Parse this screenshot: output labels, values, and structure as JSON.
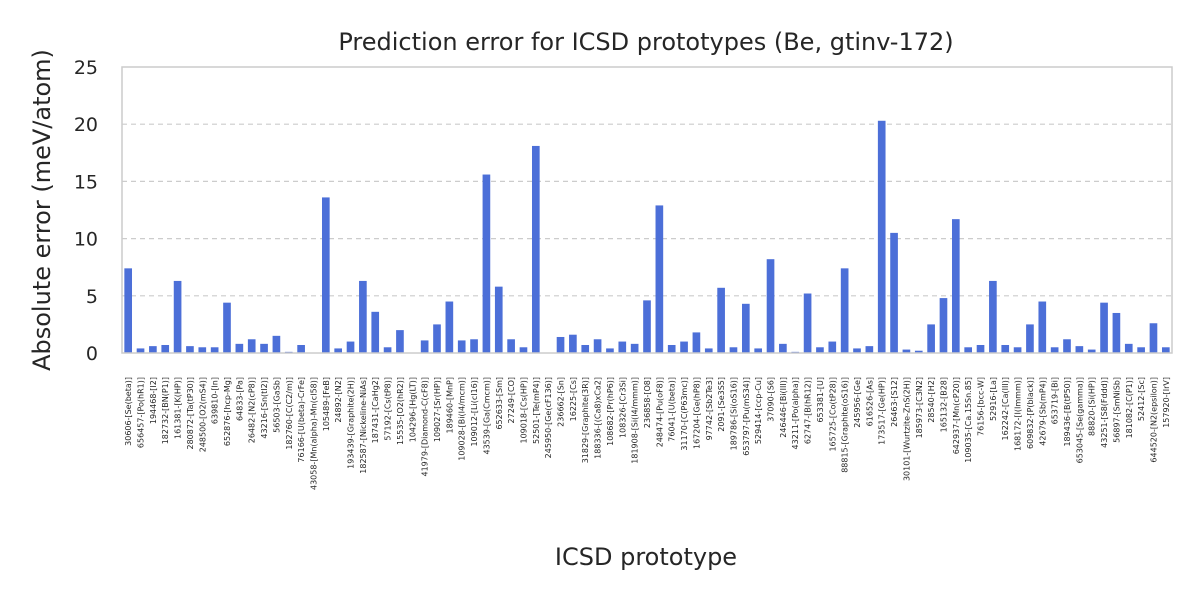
{
  "chart_data": {
    "type": "bar",
    "title": "Prediction error for ICSD prototypes (Be, gtinv-172)",
    "xlabel": "ICSD prototype",
    "ylabel": "Absolute error (meV/atom)",
    "ylim": [
      0,
      25
    ],
    "yticks": [
      0,
      5,
      10,
      15,
      20,
      25
    ],
    "grid": true,
    "bar_color": "#4c6fd8",
    "categories": [
      "30606-[Se(beta)]",
      "656457-[Po(hR1)]",
      "194468-[I2]",
      "182732-[BN(P1)]",
      "161381-[K(HP)]",
      "280872-[Ta(tP30)]",
      "248500-[O2(mS4)]",
      "639810-[In]",
      "652876-[hcp-Mg]",
      "64833-[Pa]",
      "26482-[N2(cP8)]",
      "43216-[Sn(tI2)]",
      "56503-[GaSb]",
      "182760-[C(C2/m)]",
      "76166-[U(beta)-CrFe]",
      "43058-[Mn(alpha)-Mn(cI58)]",
      "105489-[FeB]",
      "24892-[N2]",
      "193439-[Graphite(2H)]",
      "182587-[Nickeline-NiAs]",
      "187431-[CaHg2]",
      "57192-[Cs(tP8)]",
      "15535-[O2(hR2)]",
      "104296-[Hg(LT)]",
      "41979-[Diamond-C(cF8)]",
      "109027-[Sr(HP)]",
      "189460-[MnP]",
      "109028-[Bi(I4/mcm)]",
      "109012-[Li(cI16)]",
      "43539-[Ga(Cmcm)]",
      "652633-[Sm]",
      "27249-[CO]",
      "109018-[Cs(HP)]",
      "52501-[Te(mP4)]",
      "245950-[Ge(cF136)]",
      "236662-[Sn]",
      "16225-[Cs]",
      "31829-[Graphite(3R)]",
      "188336-[(Ca8)xCa2]",
      "108682-[Pr(hP6)]",
      "108326-[Cr3Si]",
      "181908-[Si(I4/mmm)]",
      "236858-[O8]",
      "248474-[Pu(oF8)]",
      "76041-[U(beta)]",
      "31170-[C(P63mc)]",
      "167204-[Ge(hP8)]",
      "97742-[Sb2Te3]",
      "2091-[Se3S5]",
      "189786-[Si(oS16)]",
      "653797-[Pu(mS34)]",
      "529414-[ccp-Cu]",
      "37090-[S6]",
      "246446-[Bi(III)]",
      "43211-[Po(alpha)]",
      "62747-[B(hR12)]",
      "653381-[U]",
      "165725-[Co(tP28)]",
      "88815-[Graphite(oS16)]",
      "245956-[Ge]",
      "616526-[As]",
      "173517-[Ge(HP)]",
      "26463-[S12]",
      "30101-[Wurtzite-ZnS(2H)]",
      "185973-[C3N2]",
      "28540-[H2]",
      "165132-[B28]",
      "642937-[Mn(cP20)]",
      "109035-[Ca.15Sn.85]",
      "76156-[bcc-W]",
      "52916-[La]",
      "162242-[Ca(III)]",
      "168172-[I(Immm)]",
      "609832-[P(black)]",
      "42679-[Sb(mP4)]",
      "653719-[Bi]",
      "189436-[B(tP50)]",
      "653045-[Se(gamma)]",
      "88820-[Si(HP)]",
      "43251-[S8(Fddd)]",
      "56897-[SmNiSb]",
      "181082-[C(P1)]",
      "52412-[Sc]",
      "644520-[N2(epsilon)]",
      "157920-[IrV]"
    ],
    "values": [
      7.4,
      0.4,
      0.6,
      0.7,
      6.3,
      0.6,
      0.5,
      0.5,
      4.4,
      0.8,
      1.2,
      0.8,
      1.5,
      0.1,
      0.7,
      0.0,
      13.6,
      0.4,
      1.0,
      6.3,
      3.6,
      0.5,
      2.0,
      0.0,
      1.1,
      2.5,
      4.5,
      1.1,
      1.2,
      15.6,
      5.8,
      1.2,
      0.5,
      18.1,
      0.0,
      1.4,
      1.6,
      0.7,
      1.2,
      0.4,
      1.0,
      0.8,
      4.6,
      12.9,
      0.7,
      1.0,
      1.8,
      0.4,
      5.7,
      0.5,
      4.3,
      0.4,
      8.2,
      0.8,
      0.1,
      5.2,
      0.5,
      1.0,
      7.4,
      0.4,
      0.6,
      20.3,
      10.5,
      0.3,
      0.2,
      2.5,
      4.8,
      11.7,
      0.5,
      0.7,
      6.3,
      0.7,
      0.5,
      2.5,
      4.5,
      0.5,
      1.2,
      0.6,
      0.3,
      4.4,
      3.5,
      0.8,
      0.5,
      2.6,
      0.5
    ]
  }
}
